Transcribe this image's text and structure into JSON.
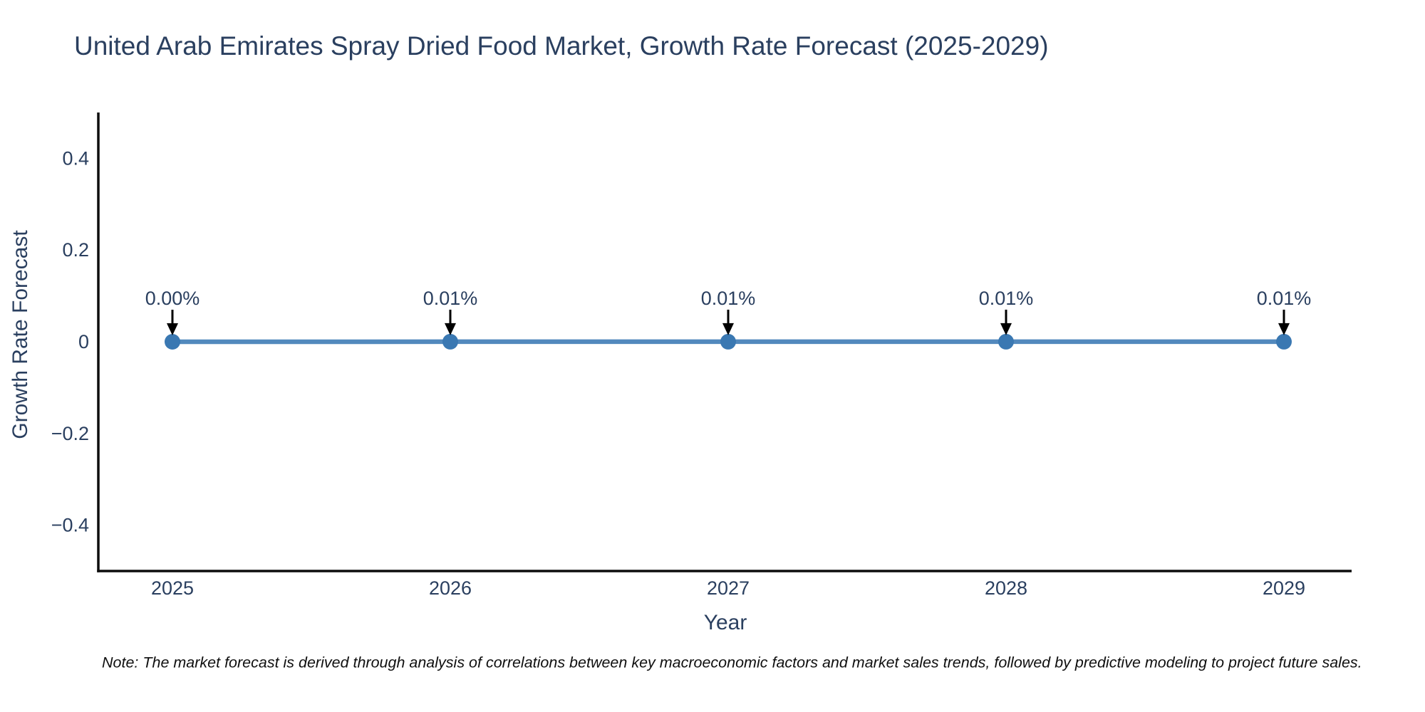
{
  "note": "Note: The market forecast is derived through analysis of correlations between key macroeconomic factors and market sales trends, followed by predictive modeling to project future sales.",
  "chart_data": {
    "type": "line",
    "title": "United Arab Emirates Spray Dried Food Market, Growth Rate Forecast (2025-2029)",
    "xlabel": "Year",
    "ylabel": "Growth Rate Forecast",
    "categories": [
      "2025",
      "2026",
      "2027",
      "2028",
      "2029"
    ],
    "series": [
      {
        "name": "Growth Rate Forecast",
        "values": [
          0.0,
          0.0001,
          0.0001,
          0.0001,
          0.0001
        ],
        "point_labels": [
          "0.00%",
          "0.01%",
          "0.01%",
          "0.01%",
          "0.01%"
        ]
      }
    ],
    "ylim": [
      -0.5,
      0.5
    ],
    "yticks": [
      {
        "v": 0.4,
        "label": "0.4"
      },
      {
        "v": 0.2,
        "label": "0.2"
      },
      {
        "v": 0.0,
        "label": "0"
      },
      {
        "v": -0.2,
        "label": "−0.2"
      },
      {
        "v": -0.4,
        "label": "−0.4"
      }
    ],
    "grid": false,
    "legend": "none",
    "colors": {
      "line": "#5289bd",
      "marker": "#3a78b2",
      "axis": "#0d0d0d",
      "text": "#2a3f5f",
      "annotation_arrow": "#000000",
      "background": "#ffffff"
    }
  }
}
